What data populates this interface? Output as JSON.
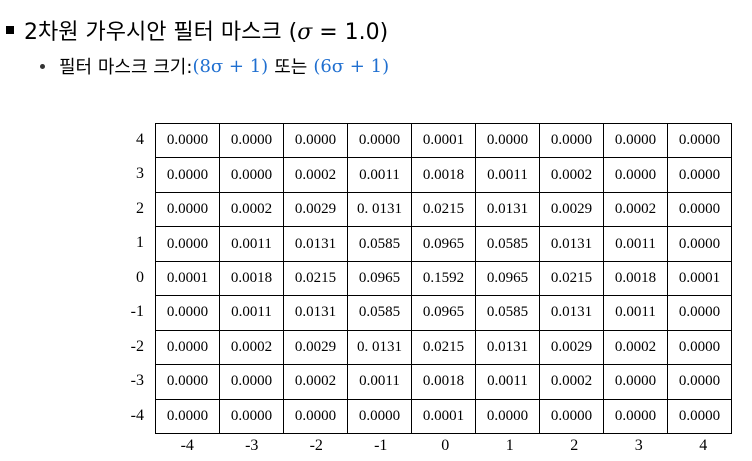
{
  "heading": {
    "text_before": "2차원 가우시안 필터 마스크 (",
    "sigma_symbol": "σ",
    "text_after": " = 1.0)"
  },
  "subpoint": {
    "label": "필터 마스크 크기: ",
    "formula1": "(8σ + 1)",
    "connector": "또는",
    "formula2": "(6σ + 1)"
  },
  "mask": {
    "row_labels": [
      "4",
      "3",
      "2",
      "1",
      "0",
      "-1",
      "-2",
      "-3",
      "-4"
    ],
    "col_labels": [
      "-4",
      "-3",
      "-2",
      "-1",
      "0",
      "1",
      "2",
      "3",
      "4"
    ],
    "rows": [
      [
        "0.0000",
        "0.0000",
        "0.0000",
        "0.0000",
        "0.0001",
        "0.0000",
        "0.0000",
        "0.0000",
        "0.0000"
      ],
      [
        "0.0000",
        "0.0000",
        "0.0002",
        "0.0011",
        "0.0018",
        "0.0011",
        "0.0002",
        "0.0000",
        "0.0000"
      ],
      [
        "0.0000",
        "0.0002",
        "0.0029",
        "0. 0131",
        "0.0215",
        "0.0131",
        "0.0029",
        "0.0002",
        "0.0000"
      ],
      [
        "0.0000",
        "0.0011",
        "0.0131",
        "0.0585",
        "0.0965",
        "0.0585",
        "0.0131",
        "0.0011",
        "0.0000"
      ],
      [
        "0.0001",
        "0.0018",
        "0.0215",
        "0.0965",
        "0.1592",
        "0.0965",
        "0.0215",
        "0.0018",
        "0.0001"
      ],
      [
        "0.0000",
        "0.0011",
        "0.0131",
        "0.0585",
        "0.0965",
        "0.0585",
        "0.0131",
        "0.0011",
        "0.0000"
      ],
      [
        "0.0000",
        "0.0002",
        "0.0029",
        "0. 0131",
        "0.0215",
        "0.0131",
        "0.0029",
        "0.0002",
        "0.0000"
      ],
      [
        "0.0000",
        "0.0000",
        "0.0002",
        "0.0011",
        "0.0018",
        "0.0011",
        "0.0002",
        "0.0000",
        "0.0000"
      ],
      [
        "0.0000",
        "0.0000",
        "0.0000",
        "0.0000",
        "0.0001",
        "0.0000",
        "0.0000",
        "0.0000",
        "0.0000"
      ]
    ]
  },
  "colors": {
    "formula": "#1f6fd0",
    "text": "#000000"
  }
}
